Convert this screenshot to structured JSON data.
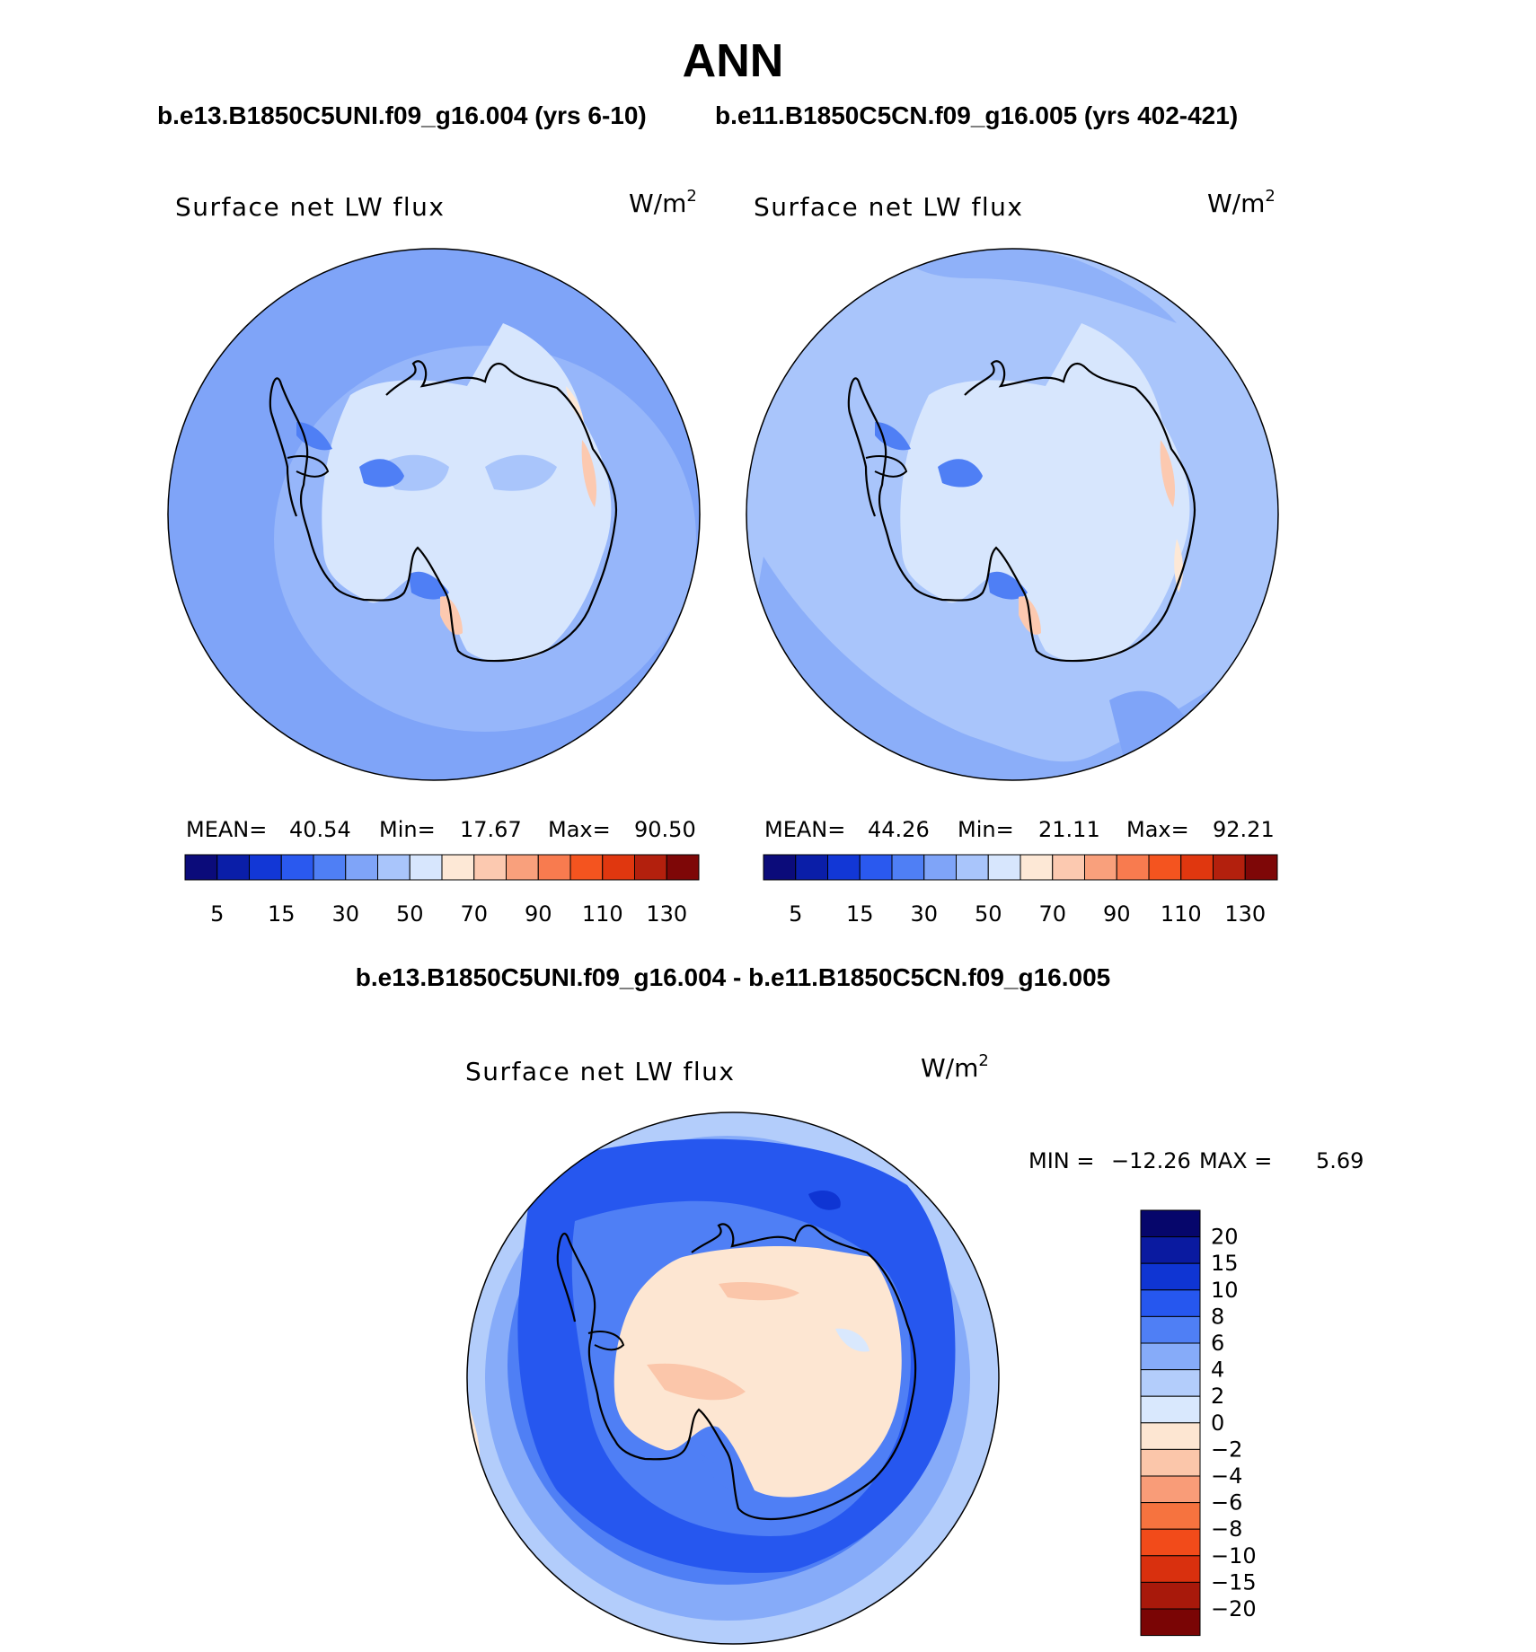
{
  "figure": {
    "season": "ANN",
    "diff_title": "b.e13.B1850C5UNI.f09_g16.004 - b.e11.B1850C5CN.f09_g16.005"
  },
  "panels": [
    {
      "case_title": "b.e13.B1850C5UNI.f09_g16.004 (yrs 6-10)",
      "variable": "Surface net LW flux",
      "units": "W/m",
      "units_exp": "2",
      "mean_label": "MEAN=",
      "mean": "40.54",
      "min_label": "Min=",
      "min": "17.67",
      "max_label": "Max=",
      "max": "90.50"
    },
    {
      "case_title": "b.e11.B1850C5CN.f09_g16.005 (yrs 402-421)",
      "variable": "Surface net LW flux",
      "units": "W/m",
      "units_exp": "2",
      "mean_label": "MEAN=",
      "mean": "44.26",
      "min_label": "Min=",
      "min": "21.11",
      "max_label": "Max=",
      "max": "92.21"
    }
  ],
  "diff_panel": {
    "variable": "Surface net LW flux",
    "units": "W/m",
    "units_exp": "2",
    "min_label": "MIN =",
    "min": "−12.26",
    "max_label": "MAX =",
    "max": "5.69"
  },
  "colorbar_abs": {
    "colors": [
      "#0b0b7a",
      "#0a1ea8",
      "#1237d6",
      "#2a59ef",
      "#4f7ff5",
      "#7fa4f8",
      "#a9c5fb",
      "#d7e6fd",
      "#fde8d6",
      "#fcc9b0",
      "#f9a07c",
      "#f87b4f",
      "#f4541f",
      "#e0370f",
      "#b3200d",
      "#7e0707"
    ],
    "tick_labels": [
      "5",
      "15",
      "30",
      "50",
      "70",
      "90",
      "110",
      "130"
    ]
  },
  "colorbar_diff": {
    "colors": [
      "#06066b",
      "#0a1aa0",
      "#0f35d3",
      "#2657ef",
      "#4f7ff5",
      "#86abf9",
      "#b3cdfb",
      "#d9e8fd",
      "#fde6d2",
      "#fbc6aa",
      "#f99c78",
      "#f6733f",
      "#f24b1a",
      "#d9300e",
      "#a8190b",
      "#7a0505"
    ],
    "tick_labels": [
      "20",
      "15",
      "10",
      "8",
      "6",
      "4",
      "2",
      "0",
      "−2",
      "−4",
      "−6",
      "−8",
      "−10",
      "−15",
      "−20"
    ]
  }
}
